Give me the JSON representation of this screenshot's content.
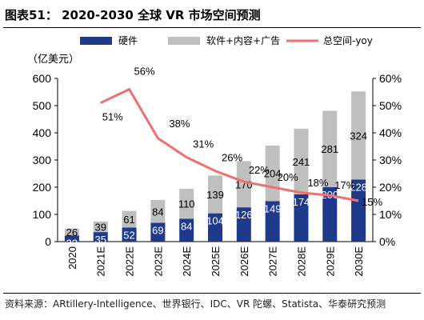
{
  "figure": {
    "title": "图表51： 2020-2030 全球 VR 市场空间预测",
    "source": "资料来源：ARtillery-Intelligence、世界银行、IDC、VR 陀螺、Statista、华泰研究预测"
  },
  "chart_data": {
    "type": "bar",
    "stacked": true,
    "categories": [
      "2020",
      "2021E",
      "2022E",
      "2023E",
      "2024E",
      "2025E",
      "2026E",
      "2027E",
      "2028E",
      "2029E",
      "2030E"
    ],
    "series": [
      {
        "name": "硬件",
        "color": "#1f3a8a",
        "values": [
          22,
          35,
          52,
          69,
          84,
          104,
          126,
          149,
          174,
          200,
          228
        ]
      },
      {
        "name": "软件+内容+广告",
        "color": "#bfbfbf",
        "values": [
          26,
          39,
          61,
          84,
          110,
          139,
          170,
          204,
          241,
          281,
          324
        ]
      }
    ],
    "line_series": {
      "name": "总空间-yoy",
      "color": "#f07070",
      "x": [
        "2021E",
        "2022E",
        "2023E",
        "2024E",
        "2025E",
        "2026E",
        "2027E",
        "2028E",
        "2029E",
        "2030E"
      ],
      "values": [
        51,
        56,
        38,
        31,
        26,
        22,
        20,
        18,
        17,
        15
      ],
      "labels": [
        "51%",
        "56%",
        "38%",
        "31%",
        "26%",
        "22%",
        "20%",
        "18%",
        "17%",
        "15%"
      ]
    },
    "ylabel": "（亿美元）",
    "ylim": [
      0,
      600
    ],
    "yticks": [
      0,
      100,
      200,
      300,
      400,
      500,
      600
    ],
    "y2lim": [
      0,
      60
    ],
    "y2ticks": [
      "0%",
      "10%",
      "20%",
      "30%",
      "40%",
      "50%",
      "60%"
    ],
    "legend_position": "top",
    "grid": false
  }
}
